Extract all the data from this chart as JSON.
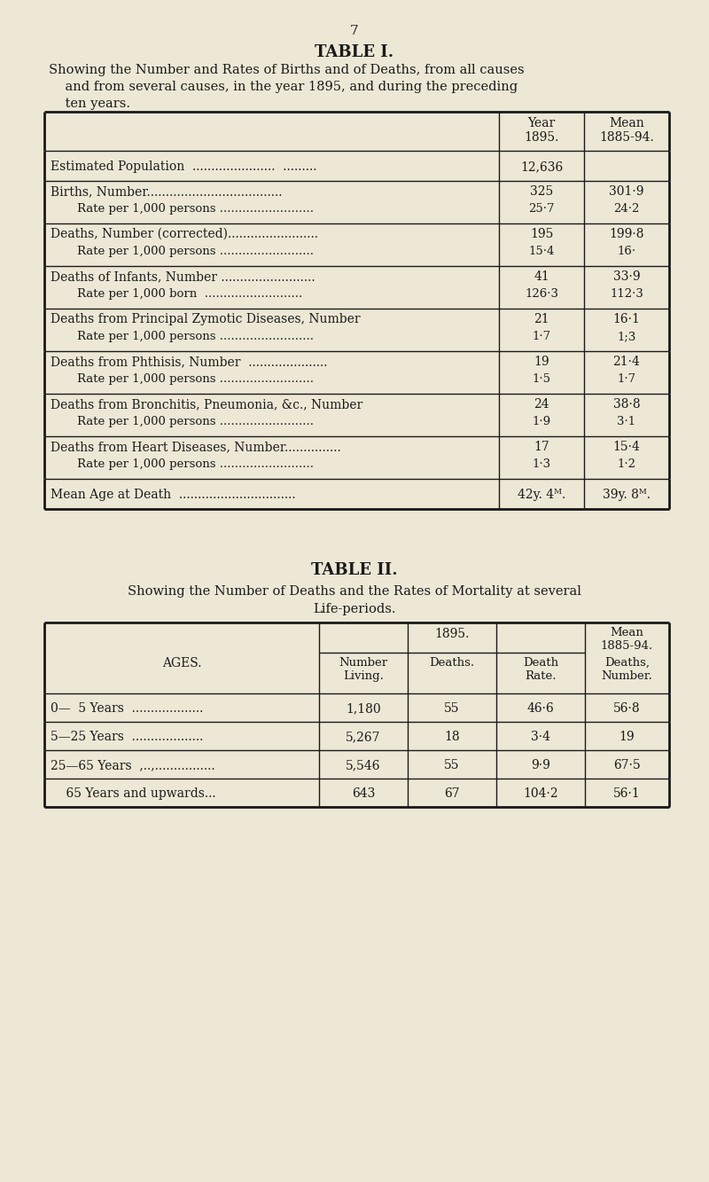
{
  "page_number": "7",
  "bg_color": "#ede8d5",
  "text_color": "#1a1a1a",
  "table1_title": "TABLE I.",
  "table1_sub1": "Showing the Number and Rates of Births and of Deaths, from all causes",
  "table1_sub2": "    and from several causes, in the year 1895, and during the preceding",
  "table1_sub3": "    ten years.",
  "table1_rows": [
    [
      "Estimated Population  ......................  .........",
      "12,636",
      ""
    ],
    [
      "Births, Number....................................",
      "325",
      "301·9"
    ],
    [
      "    Rate per 1,000 persons .........................",
      "25·7",
      "24·2"
    ],
    [
      "Deaths, Number (corrected)........................",
      "195",
      "199·8"
    ],
    [
      "    Rate per 1,000 persons .........................",
      "15·4",
      "16·"
    ],
    [
      "Deaths of Infants, Number .........................",
      "41",
      "33·9"
    ],
    [
      "    Rate per 1,000 born  ..........................",
      "126·3",
      "112·3"
    ],
    [
      "Deaths from Principal Zymotic Diseases, Number",
      "21",
      "16·1"
    ],
    [
      "    Rate per 1,000 persons .........................",
      "1·7",
      "1;3"
    ],
    [
      "Deaths from Phthisis, Number  .....................",
      "19",
      "21·4"
    ],
    [
      "    Rate per 1,000 persons .........................",
      "1·5",
      "1·7"
    ],
    [
      "Deaths from Bronchitis, Pneumonia, &c., Number",
      "24",
      "38·8"
    ],
    [
      "    Rate per 1,000 persons .........................",
      "1·9",
      "3·1"
    ],
    [
      "Deaths from Heart Diseases, Number...............",
      "17",
      "15·4"
    ],
    [
      "    Rate per 1,000 persons .........................",
      "1·3",
      "1·2"
    ],
    [
      "Mean Age at Death  ...............................",
      "42y. 4ᴹ.",
      "39y. 8ᴹ."
    ]
  ],
  "table1_row_groups": [
    [
      0,
      0
    ],
    [
      1,
      2
    ],
    [
      3,
      4
    ],
    [
      5,
      6
    ],
    [
      7,
      8
    ],
    [
      9,
      10
    ],
    [
      11,
      12
    ],
    [
      13,
      14
    ],
    [
      15,
      15
    ]
  ],
  "table2_title": "TABLE II.",
  "table2_sub1": "Showing the Number of Deaths and the Rates of Mortality at several",
  "table2_sub2": "Life-periods.",
  "table2_rows": [
    [
      "0—  5 Years  ...................",
      "1,180",
      "55",
      "46·6",
      "56·8"
    ],
    [
      "5—25 Years  ...................",
      "5,267",
      "18",
      "3·4",
      "19"
    ],
    [
      "25—65 Years  ,..,................",
      "5,546",
      "55",
      "9·9",
      "67·5"
    ],
    [
      "    65 Years and upwards...",
      "643",
      "67",
      "104·2",
      "56·1"
    ]
  ]
}
